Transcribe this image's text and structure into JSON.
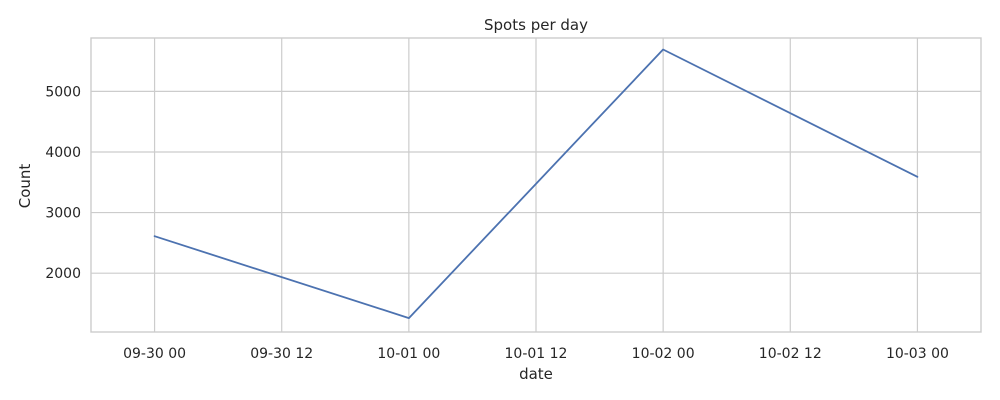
{
  "chart_data": {
    "type": "line",
    "title": "Spots per day",
    "xlabel": "date",
    "ylabel": "Count",
    "x": [
      "2023-09-30 00:00",
      "2023-10-01 00:00",
      "2023-10-02 00:00",
      "2023-10-03 00:00"
    ],
    "x_ticks": [
      "2023-09-30 00:00",
      "2023-09-30 12:00",
      "2023-10-01 00:00",
      "2023-10-01 12:00",
      "2023-10-02 00:00",
      "2023-10-02 12:00",
      "2023-10-03 00:00"
    ],
    "x_tick_labels": [
      "09-30 00",
      "09-30 12",
      "10-01 00",
      "10-01 12",
      "10-02 00",
      "10-02 12",
      "10-03 00"
    ],
    "y_ticks": [
      2000,
      3000,
      4000,
      5000
    ],
    "y_tick_labels": [
      "2000",
      "3000",
      "4000",
      "5000"
    ],
    "ylim": [
      1030,
      5880
    ],
    "xlim": [
      "2023-09-29 18:00",
      "2023-10-03 06:00"
    ],
    "series": [
      {
        "values": [
          2610,
          1260,
          5690,
          3590
        ],
        "color": "#4c72b0"
      }
    ],
    "grid": true,
    "legend": "none"
  }
}
